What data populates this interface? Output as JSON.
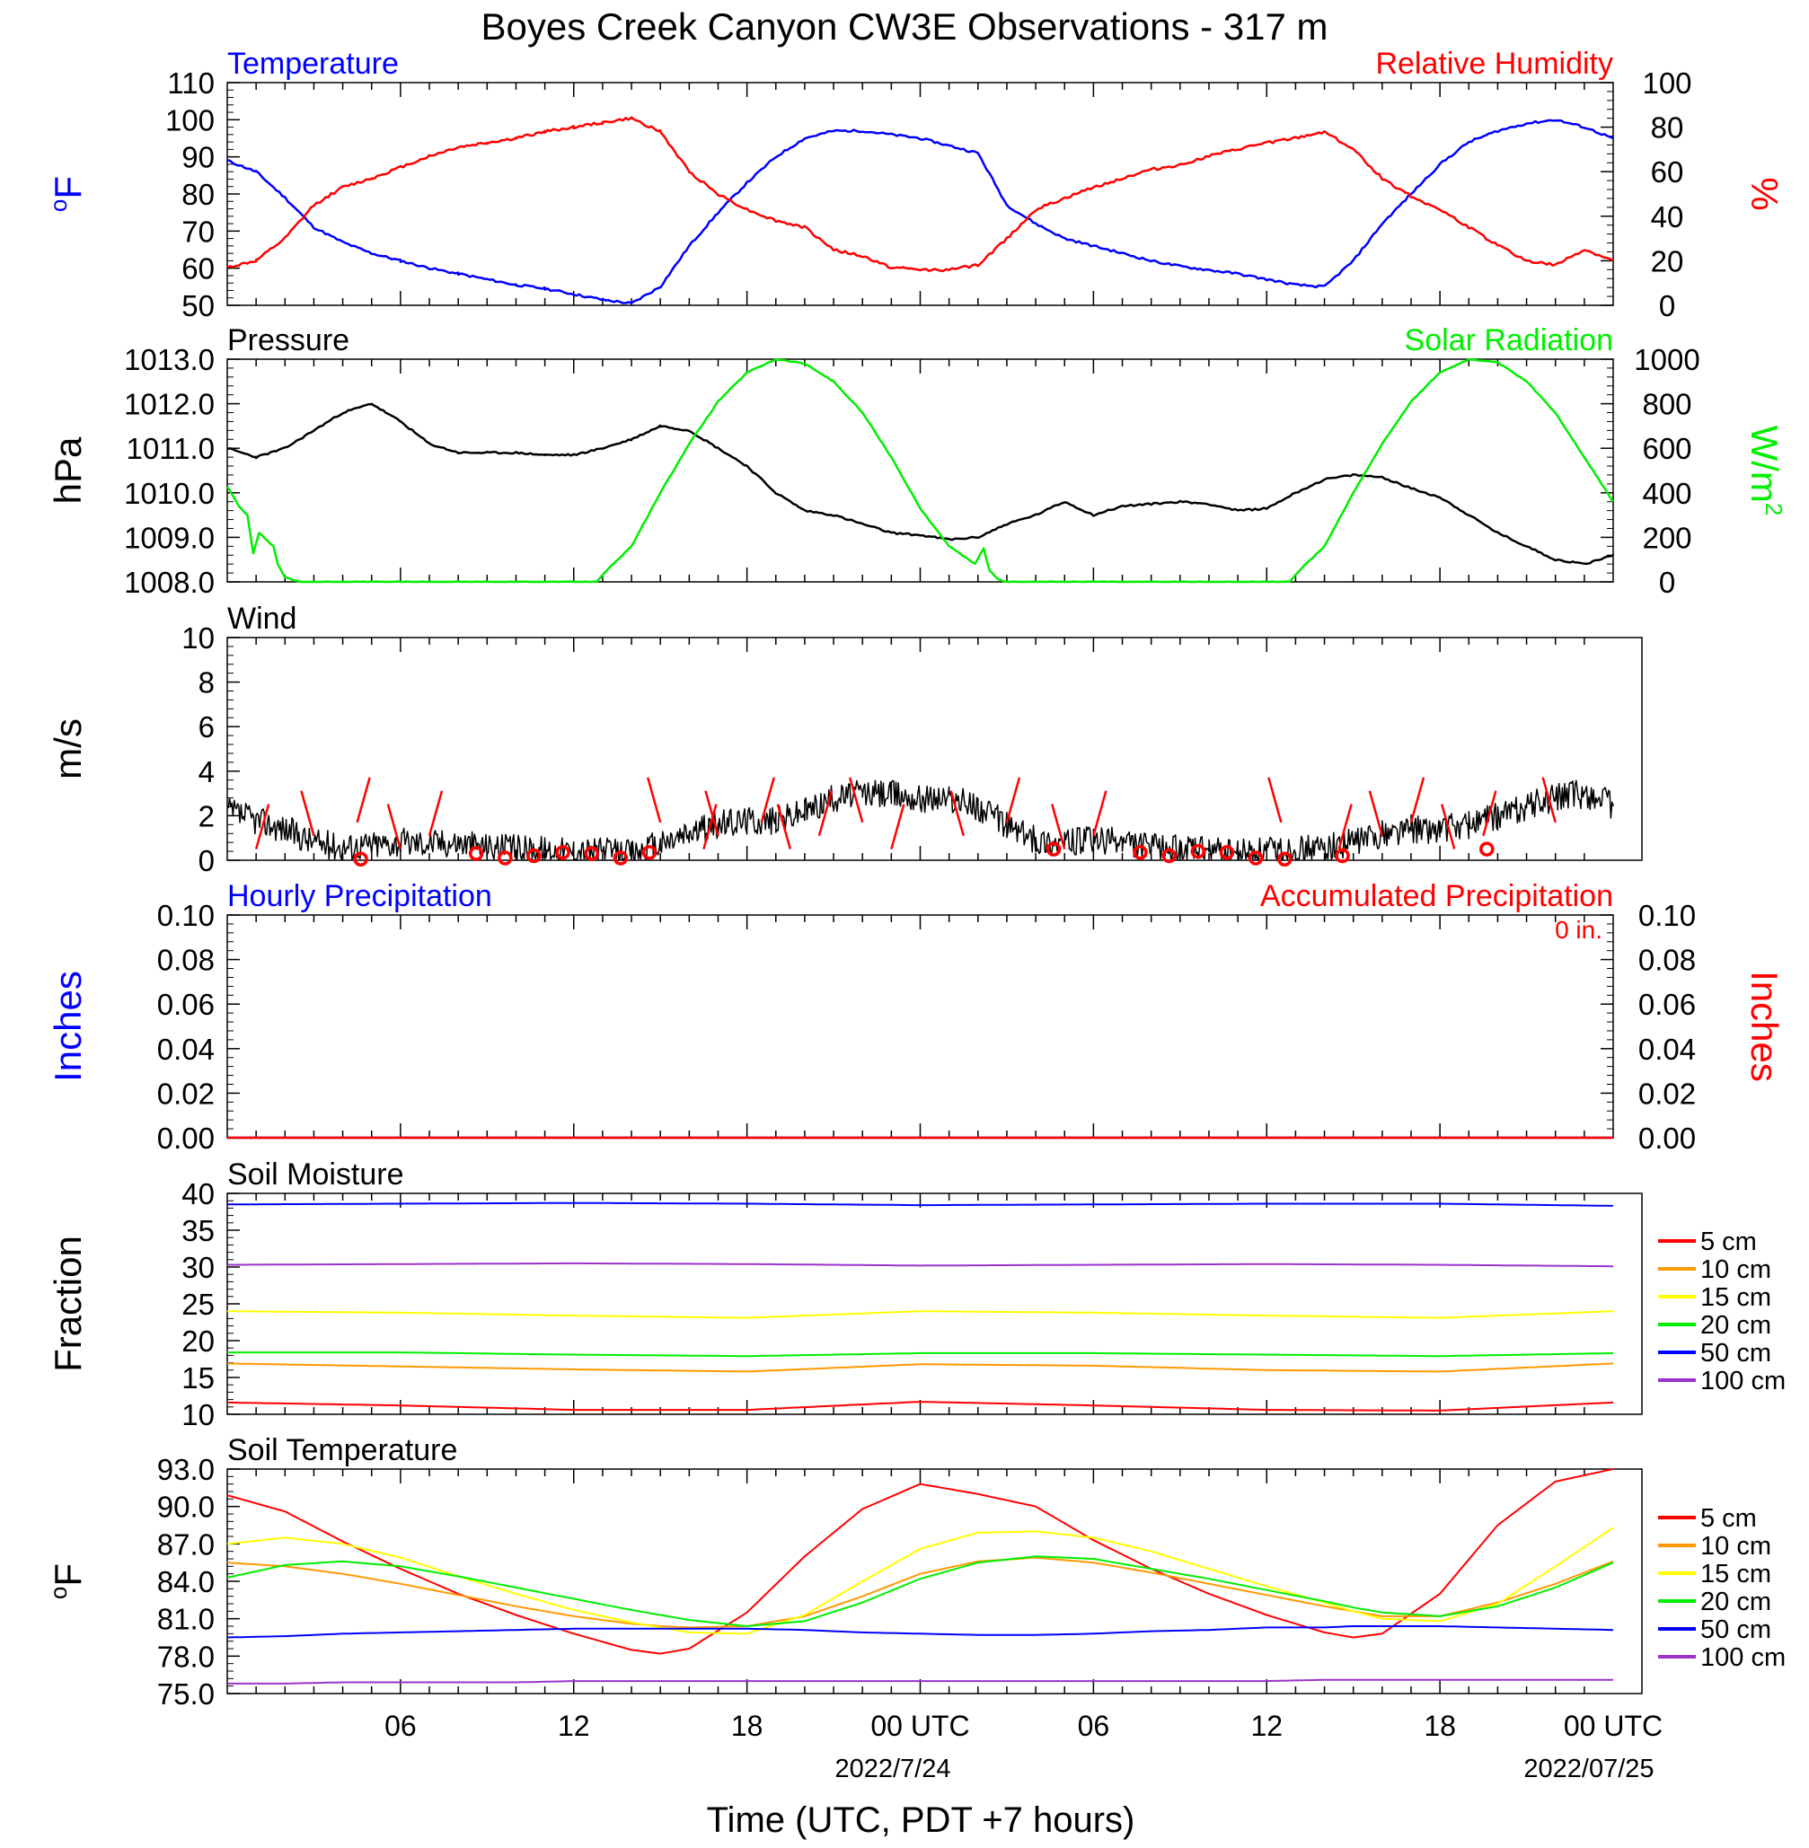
{
  "title": "Boyes Creek Canyon CW3E Observations - 317 m",
  "xlabel": "Time (UTC, PDT +7 hours)",
  "x_ticks": [
    "06",
    "12",
    "18",
    "00 UTC",
    "06",
    "12",
    "18",
    "00 UTC"
  ],
  "x_dates": [
    "2022/7/24",
    "2022/07/25"
  ],
  "colors": {
    "temp": "#0000ff",
    "rh": "#ff0000",
    "pressure": "#000000",
    "solar": "#00ee00",
    "wind": "#000000",
    "barb": "#ff0000",
    "hourly": "#0000ff",
    "accum": "#ff0000"
  },
  "chart_data": [
    {
      "id": "temp-rh",
      "type": "line",
      "title_left": "Temperature",
      "title_right": "Relative Humidity",
      "ylabel_left": "oF",
      "ylabel_right": "%",
      "ylim_left": [
        50,
        110
      ],
      "ylim_right": [
        0,
        100
      ],
      "yticks_left": [
        "50",
        "60",
        "70",
        "80",
        "90",
        "100",
        "110"
      ],
      "yticks_right": [
        "0",
        "20",
        "40",
        "60",
        "80",
        "100"
      ],
      "x_hours": [
        0,
        1,
        2,
        3,
        4,
        5,
        6,
        7,
        8,
        9,
        10,
        11,
        12,
        13,
        14,
        15,
        16,
        17,
        18,
        19,
        20,
        21,
        22,
        23,
        24,
        25,
        26,
        27,
        28,
        29,
        30,
        31,
        32,
        33,
        34,
        35,
        36,
        37,
        38,
        39,
        40,
        41,
        42,
        43,
        44,
        45,
        46,
        47,
        48
      ],
      "series": [
        {
          "name": "Temperature",
          "axis": "left",
          "values": [
            89,
            86,
            79,
            71,
            67,
            64,
            62,
            60,
            58.5,
            57,
            55.5,
            54.5,
            53,
            51.5,
            50.5,
            55,
            66,
            75,
            83,
            90,
            95,
            97,
            97,
            96,
            95,
            93,
            91,
            77,
            72,
            68,
            66,
            64,
            62,
            60.5,
            59.5,
            58.5,
            57,
            55.5,
            55,
            62,
            72,
            80,
            88,
            94,
            97,
            99,
            100,
            98,
            95
          ]
        },
        {
          "name": "Relative Humidity",
          "axis": "right",
          "values": [
            17,
            20,
            30,
            45,
            53,
            57,
            62,
            67,
            71,
            73,
            75,
            78,
            80,
            82,
            84,
            78,
            60,
            50,
            43,
            38,
            35,
            25,
            22,
            17,
            16,
            16,
            18,
            30,
            43,
            48,
            53,
            57,
            61,
            63,
            67,
            70,
            73,
            75,
            78,
            70,
            57,
            49,
            43,
            35,
            27,
            20,
            18,
            25,
            20
          ]
        }
      ]
    },
    {
      "id": "pressure-solar",
      "type": "line",
      "title_left": "Pressure",
      "title_right": "Solar Radiation",
      "ylabel_left": "hPa",
      "ylabel_right": "W/m2",
      "ylim_left": [
        1008.0,
        1013.0
      ],
      "ylim_right": [
        0,
        1000
      ],
      "yticks_left": [
        "1008.0",
        "1009.0",
        "1010.0",
        "1011.0",
        "1012.0",
        "1013.0"
      ],
      "yticks_right": [
        "0",
        "200",
        "400",
        "600",
        "800",
        "1000"
      ],
      "series": [
        {
          "name": "Pressure",
          "axis": "left",
          "x_hours": [
            0,
            1,
            2,
            3,
            4,
            5,
            6,
            7,
            8,
            9,
            10,
            11,
            12,
            13,
            14,
            15,
            16,
            17,
            18,
            19,
            20,
            21,
            22,
            23,
            24,
            25,
            26,
            27,
            28,
            29,
            30,
            31,
            32,
            33,
            34,
            35,
            36,
            37,
            38,
            39,
            40,
            41,
            42,
            43,
            44,
            45,
            46,
            47,
            48
          ],
          "values": [
            1011.0,
            1010.8,
            1011.0,
            1011.4,
            1011.8,
            1012.0,
            1011.6,
            1011.1,
            1010.9,
            1010.9,
            1010.9,
            1010.85,
            1010.85,
            1011.0,
            1011.2,
            1011.5,
            1011.4,
            1011.0,
            1010.6,
            1010.0,
            1009.6,
            1009.5,
            1009.3,
            1009.1,
            1009.05,
            1008.95,
            1009.0,
            1009.3,
            1009.5,
            1009.8,
            1009.5,
            1009.7,
            1009.75,
            1009.8,
            1009.75,
            1009.6,
            1009.65,
            1010.0,
            1010.3,
            1010.4,
            1010.35,
            1010.1,
            1009.9,
            1009.5,
            1009.1,
            1008.8,
            1008.5,
            1008.4,
            1008.6
          ]
        },
        {
          "name": "Solar Radiation",
          "axis": "right",
          "x_hours": [
            0,
            0.4,
            0.7,
            0.9,
            1.1,
            1.6,
            1.75,
            2,
            2.5,
            3,
            3.5,
            12.8,
            13.2,
            14,
            15,
            16,
            17,
            18,
            19,
            20,
            21,
            22,
            23,
            24,
            25,
            25.9,
            26.2,
            26.4,
            26.7,
            27,
            27.5,
            28,
            29,
            36.8,
            37.2,
            38,
            39,
            40,
            41,
            42,
            43,
            44,
            45,
            46,
            47,
            48
          ],
          "values": [
            430,
            340,
            300,
            130,
            220,
            160,
            80,
            20,
            0,
            0,
            0,
            0,
            60,
            160,
            400,
            620,
            810,
            940,
            1000,
            980,
            900,
            760,
            560,
            330,
            160,
            80,
            150,
            50,
            10,
            0,
            0,
            0,
            0,
            0,
            60,
            160,
            400,
            620,
            810,
            940,
            1000,
            985,
            900,
            760,
            560,
            360
          ]
        }
      ]
    },
    {
      "id": "wind",
      "type": "line",
      "title_left": "Wind",
      "ylabel_left": "m/s",
      "ylim_left": [
        0,
        10
      ],
      "yticks_left": [
        "0",
        "2",
        "4",
        "6",
        "8",
        "10"
      ],
      "x_hours": [
        0,
        1,
        2,
        3,
        4,
        5,
        6,
        7,
        8,
        9,
        10,
        11,
        12,
        13,
        14,
        15,
        16,
        17,
        18,
        19,
        20,
        21,
        22,
        23,
        24,
        25,
        26,
        27,
        28,
        29,
        30,
        31,
        32,
        33,
        34,
        35,
        36,
        37,
        38,
        39,
        40,
        41,
        42,
        43,
        44,
        45,
        46,
        47,
        48
      ],
      "series": [
        {
          "name": "Wind speed",
          "axis": "left",
          "values": [
            2.2,
            1.8,
            1.4,
            0.8,
            0.6,
            0.7,
            0.8,
            0.8,
            0.8,
            0.6,
            0.5,
            0.5,
            0.4,
            0.4,
            0.3,
            0.7,
            1.2,
            1.6,
            1.8,
            1.8,
            2.2,
            2.8,
            3.0,
            3.0,
            2.8,
            2.8,
            2.4,
            1.6,
            0.9,
            0.8,
            0.9,
            0.8,
            0.6,
            0.5,
            0.4,
            0.3,
            0.4,
            0.5,
            0.5,
            0.8,
            1.2,
            1.4,
            1.4,
            1.6,
            2.0,
            2.4,
            2.8,
            3.0,
            2.5
          ]
        }
      ],
      "calm_circle_hours": [
        4,
        8,
        9,
        10,
        11,
        12,
        13,
        14,
        28,
        31,
        32,
        33,
        34,
        35,
        36,
        38,
        43
      ],
      "calm_circle_values": [
        0.05,
        0.3,
        0.1,
        0.2,
        0.35,
        0.3,
        0.1,
        0.35,
        0.5,
        0.35,
        0.2,
        0.4,
        0.35,
        0.1,
        0.05,
        0.2,
        0.5
      ],
      "barb_hours": [
        1,
        3,
        4.5,
        6,
        7,
        15,
        16.5,
        17,
        18.5,
        19.5,
        20.5,
        22,
        23,
        25.5,
        27,
        29,
        30,
        36.5,
        38.5,
        40,
        41,
        42.5,
        43.5,
        46
      ]
    },
    {
      "id": "precip",
      "type": "line",
      "title_left": "Hourly Precipitation",
      "title_right": "Accumulated Precipitation",
      "annotation": "0 in.",
      "ylabel_left": "Inches",
      "ylabel_right": "Inches",
      "ylim_left": [
        0,
        0.1
      ],
      "ylim_right": [
        0,
        0.1
      ],
      "yticks_left": [
        "0.00",
        "0.02",
        "0.04",
        "0.06",
        "0.08",
        "0.10"
      ],
      "yticks_right": [
        "0.00",
        "0.02",
        "0.04",
        "0.06",
        "0.08",
        "0.10"
      ],
      "x_hours": [
        0,
        48
      ],
      "series": [
        {
          "name": "Hourly Precipitation",
          "axis": "left",
          "values": [
            0,
            0
          ]
        },
        {
          "name": "Accumulated Precipitation",
          "axis": "right",
          "values": [
            0,
            0
          ]
        }
      ]
    },
    {
      "id": "soil-moisture",
      "type": "line",
      "title_left": "Soil Moisture",
      "ylabel_left": "Fraction",
      "ylim_left": [
        10,
        40
      ],
      "yticks_left": [
        "10",
        "15",
        "20",
        "25",
        "30",
        "35",
        "40"
      ],
      "x_hours": [
        0,
        6,
        12,
        18,
        24,
        30,
        36,
        42,
        48
      ],
      "series": [
        {
          "name": "5 cm",
          "color": "#ff0000",
          "values": [
            11.6,
            11.2,
            10.6,
            10.6,
            11.7,
            11.2,
            10.6,
            10.5,
            11.6
          ]
        },
        {
          "name": "10 cm",
          "color": "#ff9900",
          "values": [
            16.9,
            16.5,
            16.1,
            15.8,
            16.8,
            16.6,
            16.0,
            15.8,
            16.9
          ]
        },
        {
          "name": "15 cm",
          "color": "#ffff00",
          "values": [
            24.0,
            23.8,
            23.4,
            23.1,
            24.0,
            23.8,
            23.4,
            23.1,
            24.0
          ]
        },
        {
          "name": "20 cm",
          "color": "#00ee00",
          "values": [
            18.4,
            18.4,
            18.1,
            17.9,
            18.3,
            18.3,
            18.1,
            17.9,
            18.3
          ]
        },
        {
          "name": "50 cm",
          "color": "#0000ff",
          "values": [
            38.5,
            38.6,
            38.7,
            38.6,
            38.4,
            38.5,
            38.6,
            38.6,
            38.3
          ]
        },
        {
          "name": "100 cm",
          "color": "#9933cc",
          "values": [
            30.3,
            30.4,
            30.5,
            30.4,
            30.2,
            30.3,
            30.4,
            30.3,
            30.1
          ]
        }
      ],
      "legend": [
        "5 cm",
        "10 cm",
        "15 cm",
        "20 cm",
        "50 cm",
        "100 cm"
      ]
    },
    {
      "id": "soil-temp",
      "type": "line",
      "title_left": "Soil Temperature",
      "ylabel_left": "oF",
      "ylim_left": [
        75.0,
        93.0
      ],
      "yticks_left": [
        "75.0",
        "78.0",
        "81.0",
        "84.0",
        "87.0",
        "90.0",
        "93.0"
      ],
      "x_hours": [
        0,
        2,
        4,
        6,
        8,
        10,
        12,
        14,
        15,
        16,
        18,
        20,
        22,
        24,
        26,
        28,
        30,
        32,
        34,
        36,
        38,
        39,
        40,
        42,
        44,
        46,
        48
      ],
      "series": [
        {
          "name": "5 cm",
          "color": "#ff0000",
          "values": [
            90.9,
            89.6,
            87.2,
            85.0,
            83.0,
            81.3,
            79.8,
            78.5,
            78.2,
            78.6,
            81.5,
            86.0,
            89.8,
            91.8,
            91.0,
            90.0,
            87.3,
            85.0,
            83.0,
            81.3,
            79.9,
            79.5,
            79.8,
            83.0,
            88.5,
            92.0,
            93.0
          ]
        },
        {
          "name": "10 cm",
          "color": "#ff9900",
          "values": [
            85.5,
            85.2,
            84.6,
            83.8,
            82.9,
            82.0,
            81.2,
            80.6,
            80.4,
            80.3,
            80.4,
            81.2,
            82.8,
            84.6,
            85.6,
            85.9,
            85.5,
            84.7,
            83.8,
            82.9,
            82.0,
            81.6,
            81.2,
            81.2,
            82.3,
            83.8,
            85.6
          ]
        },
        {
          "name": "15 cm",
          "color": "#ffff00",
          "values": [
            87.0,
            87.5,
            87.0,
            85.9,
            84.4,
            83.0,
            81.7,
            80.7,
            80.3,
            79.9,
            79.8,
            81.3,
            84.0,
            86.6,
            87.9,
            88.0,
            87.5,
            86.4,
            85.0,
            83.6,
            82.3,
            81.6,
            81.0,
            80.8,
            82.2,
            85.2,
            88.3
          ]
        },
        {
          "name": "20 cm",
          "color": "#00ee00",
          "values": [
            84.3,
            85.3,
            85.6,
            85.2,
            84.4,
            83.5,
            82.6,
            81.7,
            81.3,
            80.9,
            80.4,
            80.8,
            82.3,
            84.2,
            85.5,
            86.0,
            85.8,
            85.0,
            84.2,
            83.3,
            82.4,
            81.9,
            81.5,
            81.2,
            82.0,
            83.5,
            85.5
          ]
        },
        {
          "name": "50 cm",
          "color": "#0000ff",
          "values": [
            79.5,
            79.6,
            79.8,
            79.9,
            80.0,
            80.1,
            80.2,
            80.2,
            80.2,
            80.2,
            80.2,
            80.1,
            79.9,
            79.8,
            79.7,
            79.7,
            79.8,
            80.0,
            80.1,
            80.3,
            80.3,
            80.4,
            80.4,
            80.4,
            80.3,
            80.2,
            80.1
          ]
        },
        {
          "name": "100 cm",
          "color": "#9933cc",
          "values": [
            75.8,
            75.8,
            75.9,
            75.9,
            75.9,
            75.9,
            76.0,
            76.0,
            76.0,
            76.0,
            76.0,
            76.0,
            76.0,
            76.0,
            76.0,
            76.0,
            76.0,
            76.0,
            76.0,
            76.0,
            76.1,
            76.1,
            76.1,
            76.1,
            76.1,
            76.1,
            76.1
          ]
        }
      ],
      "legend": [
        "5 cm",
        "10 cm",
        "15 cm",
        "20 cm",
        "50 cm",
        "100 cm"
      ]
    }
  ]
}
